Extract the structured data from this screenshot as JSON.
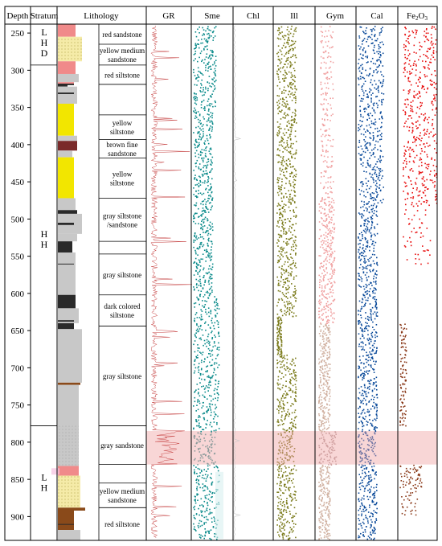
{
  "chart_data": {
    "type": "well-log",
    "headers": {
      "depth": "Depth",
      "stratum": "Stratum",
      "lithology": "Lithology",
      "tracks": [
        "GR",
        "Sme",
        "Chl",
        "Ill",
        "Gym",
        "Cal",
        "Fe2O3"
      ]
    },
    "depth_ticks": [
      250,
      300,
      350,
      400,
      450,
      500,
      550,
      600,
      650,
      700,
      750,
      800,
      850,
      900
    ],
    "depth_range": [
      238,
      932
    ],
    "strata": [
      {
        "label_lines": [
          "L",
          "H",
          "D"
        ],
        "top": 238,
        "bottom": 293
      },
      {
        "label_lines": [
          "H",
          "H"
        ],
        "top": 293,
        "bottom": 778
      },
      {
        "label_lines": [
          "L",
          "H"
        ],
        "top": 778,
        "bottom": 932
      }
    ],
    "lithology_intervals": [
      {
        "text_lines": [
          "red sandstone"
        ],
        "top": 238,
        "bottom": 265
      },
      {
        "text_lines": [
          "yellow medium",
          "sandstone"
        ],
        "top": 265,
        "bottom": 293
      },
      {
        "text_lines": [
          "red siltstone"
        ],
        "top": 293,
        "bottom": 319
      },
      {
        "text_lines": [
          ""
        ],
        "top": 319,
        "bottom": 360
      },
      {
        "text_lines": [
          "yellow",
          "siltstone"
        ],
        "top": 360,
        "bottom": 393
      },
      {
        "text_lines": [
          "brown fine",
          "sandstone"
        ],
        "top": 393,
        "bottom": 418
      },
      {
        "text_lines": [
          "yellow",
          "siltstone"
        ],
        "top": 418,
        "bottom": 472
      },
      {
        "text_lines": [
          "gray siltstone",
          "/sandstone"
        ],
        "top": 472,
        "bottom": 530
      },
      {
        "text_lines": [
          ""
        ],
        "top": 530,
        "bottom": 547
      },
      {
        "text_lines": [
          "gray siltstone"
        ],
        "top": 547,
        "bottom": 602
      },
      {
        "text_lines": [
          "dark colored",
          "siltstone"
        ],
        "top": 602,
        "bottom": 644
      },
      {
        "text_lines": [
          "gray siltstone"
        ],
        "top": 644,
        "bottom": 778
      },
      {
        "text_lines": [
          "gray sandstone"
        ],
        "top": 778,
        "bottom": 830
      },
      {
        "text_lines": [
          ""
        ],
        "top": 830,
        "bottom": 855
      },
      {
        "text_lines": [
          "yellow medium",
          "sandstone"
        ],
        "top": 855,
        "bottom": 888
      },
      {
        "text_lines": [
          "red siltstone"
        ],
        "top": 888,
        "bottom": 932
      }
    ],
    "highlight_interval": [
      785,
      830
    ],
    "colors": {
      "red": "#f08a8a",
      "yellow": "#f2e600",
      "yellow_dotted": "#f5eba8",
      "gray": "#c8c8c8",
      "dark": "#2a2a2a",
      "brown": "#7a2a2a",
      "brown_orange": "#8a4a1a",
      "highlight": "#f5c8c8",
      "GR": "#c84848",
      "Sme": "#0a8a8a",
      "Chl": "#c8c8c8",
      "Ill": "#7a7a1a",
      "Gym": "#f0a0a0",
      "Gym_lower": "#d0b0a0",
      "Cal": "#0a4a9a",
      "Fe2O3": "#e81010",
      "Fe2O3_lower": "#8a3a1a"
    }
  }
}
